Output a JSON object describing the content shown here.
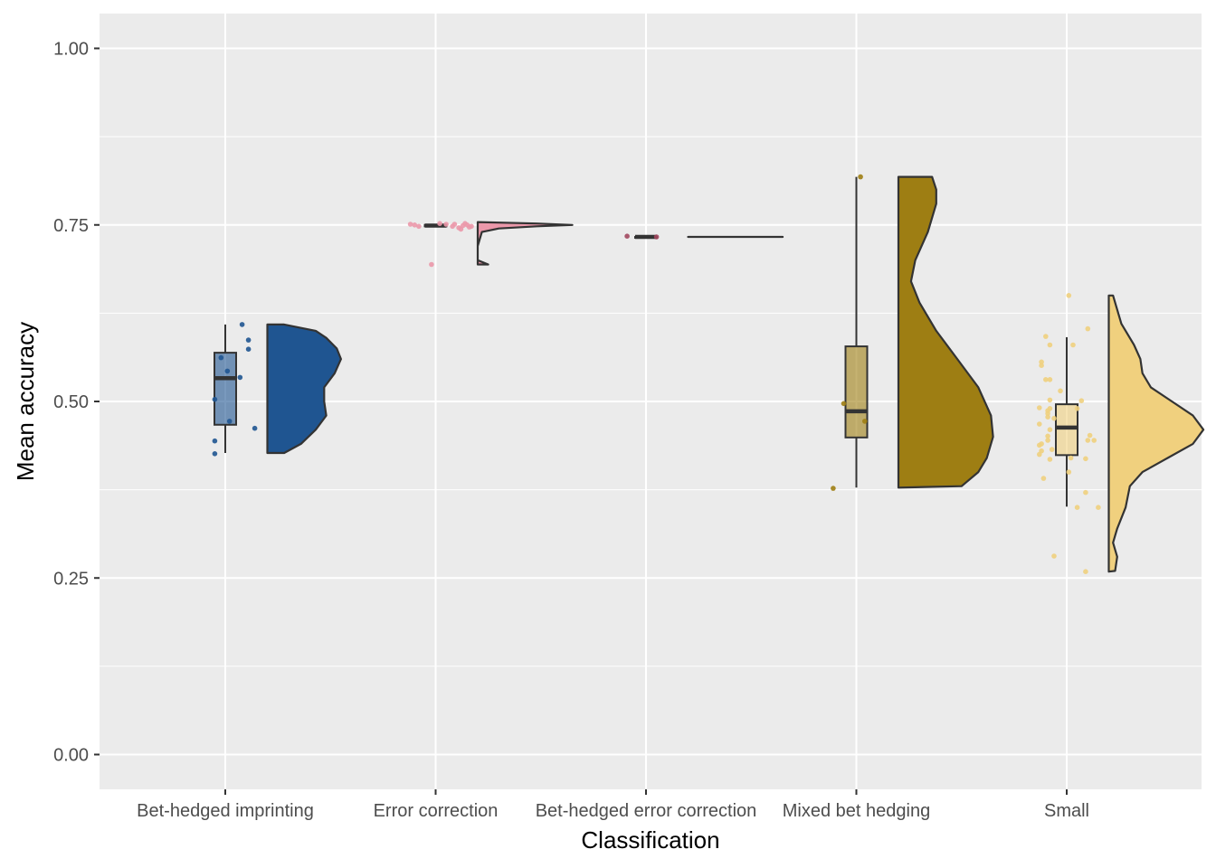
{
  "chart_data": {
    "type": "raincloud",
    "title": "",
    "xlabel": "Classification",
    "ylabel": "Mean accuracy",
    "ylim": [
      -0.05,
      1.05
    ],
    "yticks": [
      {
        "value": 0.0,
        "label": "0.00"
      },
      {
        "value": 0.25,
        "label": "0.25"
      },
      {
        "value": 0.5,
        "label": "0.50"
      },
      {
        "value": 0.75,
        "label": "0.75"
      },
      {
        "value": 1.0,
        "label": "1.00"
      }
    ],
    "grid": true,
    "legend": "none",
    "categories": [
      "Bet-hedged imprinting",
      "Error correction",
      "Bet-hedged error correction",
      "Mixed bet hedging",
      "Small"
    ],
    "series": [
      {
        "category": "Bet-hedged imprinting",
        "color": "#1F5591",
        "box": {
          "min": 0.427,
          "q1": 0.467,
          "median": 0.533,
          "q3": 0.569,
          "max": 0.609
        },
        "points": [
          {
            "x": -0.05,
            "y": 0.426
          },
          {
            "x": -0.05,
            "y": 0.444
          },
          {
            "x": -0.05,
            "y": 0.503
          },
          {
            "x": -0.02,
            "y": 0.562
          },
          {
            "x": 0.01,
            "y": 0.543
          },
          {
            "x": 0.02,
            "y": 0.472
          },
          {
            "x": 0.07,
            "y": 0.534
          },
          {
            "x": 0.08,
            "y": 0.609
          },
          {
            "x": 0.11,
            "y": 0.587
          },
          {
            "x": 0.11,
            "y": 0.574
          },
          {
            "x": 0.14,
            "y": 0.462
          }
        ],
        "density": [
          [
            0.427,
            0.28
          ],
          [
            0.44,
            0.36
          ],
          [
            0.46,
            0.43
          ],
          [
            0.48,
            0.48
          ],
          [
            0.5,
            0.47
          ],
          [
            0.52,
            0.47
          ],
          [
            0.54,
            0.52
          ],
          [
            0.56,
            0.55
          ],
          [
            0.575,
            0.53
          ],
          [
            0.59,
            0.48
          ],
          [
            0.6,
            0.43
          ],
          [
            0.609,
            0.28
          ]
        ]
      },
      {
        "category": "Error correction",
        "color": "#EB98AA",
        "box": {
          "min": 0.748,
          "q1": 0.748,
          "median": 0.749,
          "q3": 0.75,
          "max": 0.751
        },
        "points": [
          {
            "x": -0.12,
            "y": 0.751
          },
          {
            "x": -0.1,
            "y": 0.75
          },
          {
            "x": -0.08,
            "y": 0.748
          },
          {
            "x": -0.02,
            "y": 0.694
          },
          {
            "x": 0.02,
            "y": 0.752
          },
          {
            "x": 0.05,
            "y": 0.751
          },
          {
            "x": 0.08,
            "y": 0.748
          },
          {
            "x": 0.11,
            "y": 0.746
          },
          {
            "x": 0.12,
            "y": 0.744
          },
          {
            "x": 0.13,
            "y": 0.749
          },
          {
            "x": 0.14,
            "y": 0.752
          },
          {
            "x": 0.15,
            "y": 0.75
          },
          {
            "x": 0.16,
            "y": 0.747
          },
          {
            "x": 0.17,
            "y": 0.748
          },
          {
            "x": 0.09,
            "y": 0.751
          }
        ],
        "density": [
          [
            0.694,
            0.25
          ],
          [
            0.7,
            0.2
          ],
          [
            0.72,
            0.2
          ],
          [
            0.74,
            0.22
          ],
          [
            0.745,
            0.3
          ],
          [
            0.748,
            0.48
          ],
          [
            0.75,
            0.65
          ],
          [
            0.752,
            0.48
          ],
          [
            0.754,
            0.2
          ]
        ]
      },
      {
        "category": "Bet-hedged error correction",
        "color": "#A2485F",
        "box": {
          "min": 0.733,
          "q1": 0.733,
          "median": 0.733,
          "q3": 0.733,
          "max": 0.733
        },
        "points": [
          {
            "x": -0.09,
            "y": 0.734
          },
          {
            "x": 0.05,
            "y": 0.733
          }
        ],
        "density": [
          [
            0.733,
            0.2
          ],
          [
            0.733,
            0.65
          ]
        ]
      },
      {
        "category": "Mixed bet hedging",
        "color": "#9E7E13",
        "box": {
          "min": 0.378,
          "q1": 0.449,
          "median": 0.486,
          "q3": 0.578,
          "max": 0.818
        },
        "points": [
          {
            "x": -0.11,
            "y": 0.377
          },
          {
            "x": -0.06,
            "y": 0.497
          },
          {
            "x": 0.02,
            "y": 0.818
          },
          {
            "x": 0.04,
            "y": 0.472
          }
        ],
        "density": [
          [
            0.378,
            0.2
          ],
          [
            0.38,
            0.5
          ],
          [
            0.4,
            0.58
          ],
          [
            0.42,
            0.62
          ],
          [
            0.45,
            0.65
          ],
          [
            0.48,
            0.64
          ],
          [
            0.52,
            0.58
          ],
          [
            0.56,
            0.48
          ],
          [
            0.6,
            0.38
          ],
          [
            0.64,
            0.3
          ],
          [
            0.67,
            0.26
          ],
          [
            0.7,
            0.28
          ],
          [
            0.74,
            0.34
          ],
          [
            0.78,
            0.38
          ],
          [
            0.8,
            0.38
          ],
          [
            0.818,
            0.36
          ],
          [
            0.818,
            0.2
          ]
        ]
      },
      {
        "category": "Small",
        "color": "#F0D07E",
        "box": {
          "min": 0.351,
          "q1": 0.424,
          "median": 0.463,
          "q3": 0.496,
          "max": 0.591
        },
        "points": [
          {
            "x": -0.13,
            "y": 0.491
          },
          {
            "x": -0.13,
            "y": 0.468
          },
          {
            "x": -0.12,
            "y": 0.44
          },
          {
            "x": -0.12,
            "y": 0.43
          },
          {
            "x": -0.13,
            "y": 0.438
          },
          {
            "x": -0.13,
            "y": 0.425
          },
          {
            "x": -0.12,
            "y": 0.556
          },
          {
            "x": -0.12,
            "y": 0.551
          },
          {
            "x": -0.11,
            "y": 0.391
          },
          {
            "x": -0.1,
            "y": 0.592
          },
          {
            "x": -0.1,
            "y": 0.531
          },
          {
            "x": -0.09,
            "y": 0.487
          },
          {
            "x": -0.09,
            "y": 0.483
          },
          {
            "x": -0.09,
            "y": 0.478
          },
          {
            "x": -0.09,
            "y": 0.451
          },
          {
            "x": -0.09,
            "y": 0.445
          },
          {
            "x": -0.08,
            "y": 0.58
          },
          {
            "x": -0.08,
            "y": 0.531
          },
          {
            "x": -0.08,
            "y": 0.502
          },
          {
            "x": -0.08,
            "y": 0.49
          },
          {
            "x": -0.08,
            "y": 0.46
          },
          {
            "x": -0.08,
            "y": 0.418
          },
          {
            "x": -0.07,
            "y": 0.432
          },
          {
            "x": -0.06,
            "y": 0.281
          },
          {
            "x": -0.06,
            "y": 0.476
          },
          {
            "x": -0.03,
            "y": 0.515
          },
          {
            "x": 0.01,
            "y": 0.65
          },
          {
            "x": 0.01,
            "y": 0.4
          },
          {
            "x": 0.02,
            "y": 0.42
          },
          {
            "x": 0.03,
            "y": 0.58
          },
          {
            "x": 0.05,
            "y": 0.49
          },
          {
            "x": 0.05,
            "y": 0.35
          },
          {
            "x": 0.07,
            "y": 0.501
          },
          {
            "x": 0.09,
            "y": 0.419
          },
          {
            "x": 0.09,
            "y": 0.371
          },
          {
            "x": 0.09,
            "y": 0.259
          },
          {
            "x": 0.1,
            "y": 0.603
          },
          {
            "x": 0.1,
            "y": 0.445
          },
          {
            "x": 0.11,
            "y": 0.452
          },
          {
            "x": 0.13,
            "y": 0.445
          },
          {
            "x": 0.15,
            "y": 0.35
          }
        ],
        "density": [
          [
            0.259,
            0.2
          ],
          [
            0.26,
            0.23
          ],
          [
            0.28,
            0.24
          ],
          [
            0.3,
            0.22
          ],
          [
            0.32,
            0.24
          ],
          [
            0.35,
            0.28
          ],
          [
            0.38,
            0.3
          ],
          [
            0.4,
            0.36
          ],
          [
            0.42,
            0.48
          ],
          [
            0.44,
            0.6
          ],
          [
            0.46,
            0.65
          ],
          [
            0.48,
            0.6
          ],
          [
            0.5,
            0.5
          ],
          [
            0.52,
            0.4
          ],
          [
            0.54,
            0.36
          ],
          [
            0.56,
            0.35
          ],
          [
            0.58,
            0.32
          ],
          [
            0.61,
            0.26
          ],
          [
            0.64,
            0.23
          ],
          [
            0.65,
            0.22
          ],
          [
            0.65,
            0.2
          ]
        ]
      }
    ]
  }
}
